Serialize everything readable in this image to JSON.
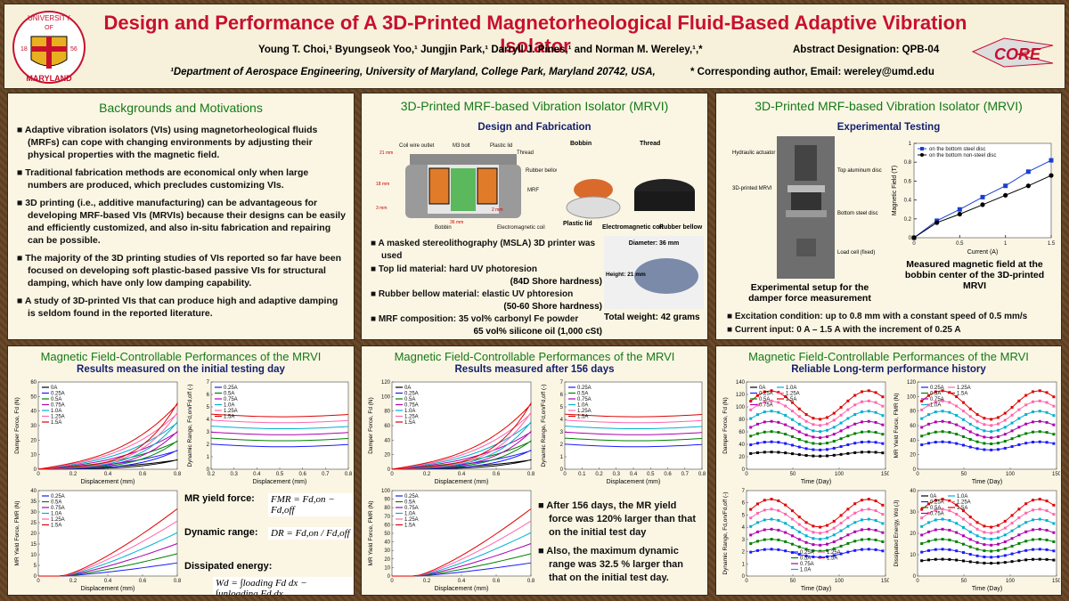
{
  "header": {
    "title": "Design and Performance of A 3D-Printed Magnetorheological Fluid-Based Adaptive Vibration Isolator",
    "authors": "Young T. Choi,¹  Byungseok Yoo,¹  Jungjin Park,¹  Darryll J. Pines,¹  and  Norman M. Wereley,¹,*",
    "abstract": "Abstract Designation: QPB-04",
    "affiliation": "¹Department of Aerospace Engineering, University of Maryland, College Park, Maryland 20742, USA,",
    "corresponding": "* Corresponding author, Email: wereley@umd.edu",
    "logo_left": [
      "UNIVERSITY",
      "OF",
      "MARYLAND",
      "18",
      "56"
    ],
    "logo_right": "CORE"
  },
  "panels": [
    {
      "heading": "Backgrounds and Motivations",
      "bullets": [
        "Adaptive vibration isolators (VIs) using magnetorheological fluids (MRFs) can cope with changing environments by adjusting their physical properties with the magnetic field.",
        "Traditional fabrication methods are economical only when large numbers are produced, which precludes customizing VIs.",
        "3D printing (i.e., additive manufacturing) can be advantageous for developing MRF-based VIs (MRVIs) because their designs can be easily and efficiently customized, and also in-situ fabrication and repairing can be possible.",
        "The majority of the 3D printing studies of VIs reported so far have been focused on developing soft plastic-based passive VIs for structural damping, which have only low damping capability.",
        "A study of 3D-printed VIs that can produce high and adaptive damping is seldom found in the reported literature."
      ]
    },
    {
      "heading": "3D-Printed MRF-based Vibration Isolator (MRVI)",
      "subheading": "Design and Fabrication",
      "diagram_labels": [
        "Coil wire outlet",
        "M3 bolt",
        "Plastic lid",
        "Thread",
        "Rubber bellow",
        "MRF",
        "Bobbin",
        "Electromagnetic coil",
        "21 mm",
        "18 mm",
        "3 mm",
        "2 mm",
        "36 mm"
      ],
      "photo_labels": [
        "Bobbin",
        "Thread",
        "Plastic lid",
        "Electromagnetic coil",
        "Rubber bellow"
      ],
      "bullets": [
        {
          "text": "A masked stereolithography (MSLA) 3D printer was used"
        },
        {
          "text": "Top lid material: hard UV photoresion",
          "detail": "(84D Shore hardness)"
        },
        {
          "text": "Rubber bellow material: elastic UV phtoresion",
          "detail": "(50-60 Shore hardness)"
        },
        {
          "text": "MRF composition: 35 vol% carbonyl Fe powder",
          "detail": "65 vol% silicone oil (1,000 cSt)"
        }
      ],
      "diameter": "Diameter: 36 mm",
      "height": "Height: 21 mm",
      "weight": "Total weight: 42 grams"
    },
    {
      "heading": "3D-Printed MRF-based Vibration Isolator (MRVI)",
      "subheading": "Experimental Testing",
      "setup_labels": [
        "Hydraulic actuator",
        "3D-printed MRVI",
        "Top aluminum disc",
        "Bottom steel disc",
        "Load cell (fixed)"
      ],
      "caption_left": "Experimental setup for the damper force measurement",
      "caption_right": "Measured magnetic field at the bobbin center of the 3D-printed MRVI",
      "bullets": [
        "Excitation condition: up to 0.8 mm with a constant speed of 0.5 mm/s",
        "Current input: 0 A – 1.5 A with the increment of 0.25 A"
      ]
    },
    {
      "heading": "Magnetic Field-Controllable Performances of the MRVI",
      "subheading": "Results measured on the initial testing day",
      "plots": [
        {
          "ylabel": "Damper Force, Fd (N)",
          "xlabel": "Displacement (mm)",
          "yticks": [
            0,
            10,
            20,
            30,
            40,
            50,
            60
          ],
          "xticks": [
            0,
            0.2,
            0.4,
            0.6,
            0.8
          ],
          "legend": [
            "0A",
            "0.25A",
            "0.5A",
            "0.75A",
            "1.0A",
            "1.25A",
            "1.5A"
          ],
          "colors": [
            "#000000",
            "#1a1aff",
            "#008000",
            "#b000b0",
            "#00b0d0",
            "#ff66aa",
            "#e00000"
          ]
        },
        {
          "ylabel": "Dynamic Range, Fd,on/Fd,off (-)",
          "xlabel": "Displacement (mm)",
          "yticks": [
            0,
            1,
            2,
            3,
            4,
            5,
            6,
            7
          ],
          "xticks": [
            0.2,
            0.3,
            0.4,
            0.5,
            0.6,
            0.7,
            0.8
          ],
          "legend": [
            "0.25A",
            "0.5A",
            "0.75A",
            "1.0A",
            "1.25A",
            "1.5A"
          ],
          "colors": [
            "#1a1aff",
            "#008000",
            "#b000b0",
            "#00b0d0",
            "#ff66aa",
            "#e00000"
          ]
        },
        {
          "ylabel": "MR Yield Force, FMR (N)",
          "xlabel": "Displacement (mm)",
          "yticks": [
            0,
            5,
            10,
            15,
            20,
            25,
            30,
            35,
            40
          ],
          "xticks": [
            0,
            0.2,
            0.4,
            0.6,
            0.8
          ],
          "legend": [
            "0.25A",
            "0.5A",
            "0.75A",
            "1.0A",
            "1.25A",
            "1.5A"
          ],
          "colors": [
            "#1a1aff",
            "#008000",
            "#b000b0",
            "#00b0d0",
            "#ff66aa",
            "#e00000"
          ]
        }
      ],
      "equations": [
        {
          "label": "MR yield force:",
          "formula": "FMR = Fd,on − Fd,off"
        },
        {
          "label": "Dynamic range:",
          "formula": "DR = Fd,on / Fd,off"
        },
        {
          "label": "Dissipated energy:",
          "formula": "Wd = ∫loading Fd dx − ∫unloading Fd dx"
        }
      ]
    },
    {
      "heading": "Magnetic Field-Controllable Performances of the MRVI",
      "subheading": "Results measured after 156 days",
      "plots": [
        {
          "ylabel": "Damper Force, Fd (N)",
          "xlabel": "Displacement (mm)",
          "yticks": [
            0,
            20,
            40,
            60,
            80,
            100,
            120
          ],
          "xticks": [
            0,
            0.2,
            0.4,
            0.6,
            0.8
          ],
          "legend": [
            "0A",
            "0.25A",
            "0.5A",
            "0.75A",
            "1.0A",
            "1.25A",
            "1.5A"
          ],
          "colors": [
            "#000000",
            "#1a1aff",
            "#008000",
            "#b000b0",
            "#00b0d0",
            "#ff66aa",
            "#e00000"
          ]
        },
        {
          "ylabel": "Dynamic Range, Fd,on/Fd,off (-)",
          "xlabel": "Displacement (mm)",
          "yticks": [
            0,
            1,
            2,
            3,
            4,
            5,
            6,
            7
          ],
          "xticks": [
            0,
            0.1,
            0.2,
            0.3,
            0.4,
            0.5,
            0.6,
            0.7,
            0.8
          ],
          "legend": [
            "0.25A",
            "0.5A",
            "0.75A",
            "1.0A",
            "1.25A",
            "1.5A"
          ],
          "colors": [
            "#1a1aff",
            "#008000",
            "#b000b0",
            "#00b0d0",
            "#ff66aa",
            "#e00000"
          ]
        },
        {
          "ylabel": "MR Yield Force, FMR (N)",
          "xlabel": "Displacement (mm)",
          "yticks": [
            0,
            10,
            20,
            30,
            40,
            50,
            60,
            70,
            80,
            90,
            100
          ],
          "xticks": [
            0,
            0.2,
            0.4,
            0.6,
            0.8
          ],
          "legend": [
            "0.25A",
            "0.5A",
            "0.75A",
            "1.0A",
            "1.25A",
            "1.5A"
          ],
          "colors": [
            "#1a1aff",
            "#008000",
            "#b000b0",
            "#00b0d0",
            "#ff66aa",
            "#e00000"
          ]
        }
      ],
      "bullets": [
        "After 156 days, the MR yield force was 120% larger than that on the initial test day",
        "Also, the maximum dynamic range was 32.5 % larger than that on the initial test day."
      ]
    },
    {
      "heading": "Magnetic Field-Controllable Performances of the MRVI",
      "subheading": "Reliable Long-term performance history",
      "plots": [
        {
          "ylabel": "Damper Force, Fd (N)",
          "xlabel": "Time (Day)",
          "yticks": [
            0,
            20,
            40,
            60,
            80,
            100,
            120,
            140
          ],
          "xticks": [
            0,
            50,
            100,
            150
          ],
          "legend": [
            "0A",
            "0.25A",
            "0.5A",
            "0.75A",
            "1.0A",
            "1.25A",
            "1.5A"
          ],
          "colors": [
            "#000000",
            "#1a1aff",
            "#008000",
            "#b000b0",
            "#00b0d0",
            "#ff66aa",
            "#e00000"
          ]
        },
        {
          "ylabel": "MR Yield Force, FMR (N)",
          "xlabel": "Time (Day)",
          "yticks": [
            0,
            20,
            40,
            60,
            80,
            100,
            120
          ],
          "xticks": [
            0,
            50,
            100,
            150
          ],
          "legend": [
            "0.25A",
            "0.5A",
            "0.75A",
            "1.0A",
            "1.25A",
            "1.5A"
          ],
          "colors": [
            "#1a1aff",
            "#008000",
            "#b000b0",
            "#00b0d0",
            "#ff66aa",
            "#e00000"
          ]
        },
        {
          "ylabel": "Dynamic Range, Fd,on/Fd,off (-)",
          "xlabel": "Time (Day)",
          "yticks": [
            0,
            1,
            2,
            3,
            4,
            5,
            6,
            7
          ],
          "xticks": [
            0,
            50,
            100,
            150
          ],
          "legend": [
            "0.25A",
            "0.5A",
            "0.75A",
            "1.0A",
            "1.25A",
            "1.5A"
          ],
          "colors": [
            "#1a1aff",
            "#008000",
            "#b000b0",
            "#00b0d0",
            "#ff66aa",
            "#e00000"
          ]
        },
        {
          "ylabel": "Dissipated Energy, Wd (J)",
          "xlabel": "Time (Day)",
          "yticks": [
            0,
            10,
            20,
            30,
            40
          ],
          "xticks": [
            0,
            50,
            100,
            150
          ],
          "legend": [
            "0A",
            "0.25A",
            "0.5A",
            "0.75A",
            "1.0A",
            "1.25A",
            "1.5A"
          ],
          "colors": [
            "#000000",
            "#1a1aff",
            "#008000",
            "#b000b0",
            "#00b0d0",
            "#ff66aa",
            "#e00000"
          ]
        }
      ]
    }
  ],
  "chart_data": {
    "type": "line",
    "xlabel": "Current (A)",
    "ylabel": "Magnetic Field (T)",
    "x": [
      0,
      0.25,
      0.5,
      0.75,
      1,
      1.25,
      1.5
    ],
    "series": [
      {
        "name": "on the bottom steel disc",
        "color": "#1a3fd0",
        "marker": "square",
        "values": [
          0,
          0.18,
          0.3,
          0.43,
          0.55,
          0.7,
          0.82
        ]
      },
      {
        "name": "on the bottom non-steel disc",
        "color": "#000000",
        "marker": "circle",
        "values": [
          0,
          0.16,
          0.25,
          0.35,
          0.45,
          0.55,
          0.66
        ]
      }
    ],
    "xlim": [
      0,
      1.5
    ],
    "ylim": [
      0,
      1
    ],
    "xticks": [
      0,
      0.5,
      1,
      1.5
    ],
    "yticks": [
      0,
      0.2,
      0.4,
      0.6,
      0.8,
      1
    ],
    "legend": "upper left"
  }
}
